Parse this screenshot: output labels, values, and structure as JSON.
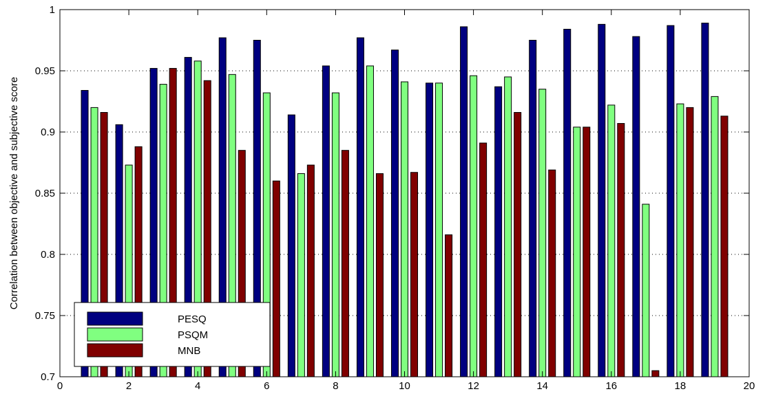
{
  "chart_data": {
    "type": "bar",
    "title": "",
    "xlabel": "",
    "ylabel": "Correlation between objective and subjective score",
    "xlim": [
      0,
      20
    ],
    "ylim": [
      0.7,
      1
    ],
    "xticks": [
      0,
      2,
      4,
      6,
      8,
      10,
      12,
      14,
      16,
      18,
      20
    ],
    "yticks": [
      0.7,
      0.75,
      0.8,
      0.85,
      0.9,
      0.95,
      1
    ],
    "ytick_labels": [
      "0.7",
      "0.75",
      "0.8",
      "0.85",
      "0.9",
      "0.95",
      "1"
    ],
    "grid": "y dotted",
    "legend_position": "bottom-left",
    "categories": [
      1,
      2,
      3,
      4,
      5,
      6,
      7,
      8,
      9,
      10,
      11,
      12,
      13,
      14,
      15,
      16,
      17,
      18,
      19
    ],
    "series": [
      {
        "name": "PESQ",
        "color": "#000080",
        "values": [
          0.934,
          0.906,
          0.952,
          0.961,
          0.977,
          0.975,
          0.914,
          0.954,
          0.977,
          0.967,
          0.94,
          0.986,
          0.937,
          0.975,
          0.984,
          0.988,
          0.978,
          0.987,
          0.989
        ]
      },
      {
        "name": "PSQM",
        "color": "#80ff80",
        "values": [
          0.92,
          0.873,
          0.939,
          0.958,
          0.947,
          0.932,
          0.866,
          0.932,
          0.954,
          0.941,
          0.94,
          0.946,
          0.945,
          0.935,
          0.904,
          0.922,
          0.841,
          0.923,
          0.929
        ]
      },
      {
        "name": "MNB",
        "color": "#800000",
        "values": [
          0.916,
          0.888,
          0.952,
          0.942,
          0.885,
          0.86,
          0.873,
          0.885,
          0.866,
          0.867,
          0.816,
          0.891,
          0.916,
          0.869,
          0.904,
          0.907,
          0.705,
          0.92,
          0.913
        ]
      }
    ]
  }
}
